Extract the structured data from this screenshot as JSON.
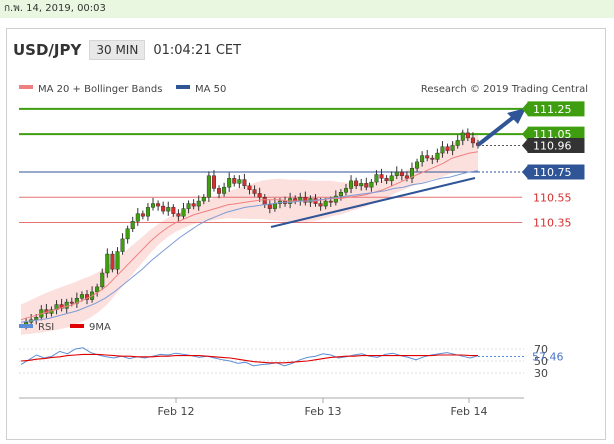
{
  "datetime": "ก.พ. 14, 2019, 00:03",
  "header": {
    "symbol": "USD/JPY",
    "timeframe": "30 MIN",
    "time": "01:04:21 CET"
  },
  "legend": {
    "ma20": "MA 20 + Bollinger Bands",
    "ma50": "MA 50",
    "credit": "Research © 2019 Trading Central"
  },
  "rsi_legend": {
    "rsi": "RSI",
    "ma9": "9MA"
  },
  "colors": {
    "green": "#3f9e0f",
    "blue": "#2f5597",
    "red": "#e57373",
    "dark": "#333333",
    "band": "#fbd6d3",
    "ma20": "#f08080",
    "ma50": "#7f9bd5"
  },
  "chart_data": {
    "type": "line",
    "instrument": "USD/JPY",
    "interval": "30 MIN",
    "x_labels": [
      "Feb 12",
      "Feb 13",
      "Feb 14"
    ],
    "levels": [
      {
        "value": 111.25,
        "label": "111.25",
        "color": "green"
      },
      {
        "value": 111.05,
        "label": "111.05",
        "color": "green"
      },
      {
        "value": 110.96,
        "label": "110.96",
        "color": "dark"
      },
      {
        "value": 110.75,
        "label": "110.75",
        "color": "blue"
      },
      {
        "value": 110.55,
        "label": "110.55",
        "color": "red"
      },
      {
        "value": 110.35,
        "label": "110.35",
        "color": "red"
      }
    ],
    "ylim": [
      109.45,
      111.4
    ],
    "closes": [
      109.54,
      109.56,
      109.58,
      109.6,
      109.66,
      109.63,
      109.66,
      109.7,
      109.67,
      109.72,
      109.71,
      109.75,
      109.78,
      109.74,
      109.8,
      109.84,
      109.95,
      110.1,
      109.98,
      110.12,
      110.22,
      110.3,
      110.36,
      110.42,
      110.4,
      110.47,
      110.5,
      110.48,
      110.44,
      110.47,
      110.42,
      110.4,
      110.46,
      110.5,
      110.48,
      110.52,
      110.55,
      110.72,
      110.62,
      110.58,
      110.63,
      110.7,
      110.66,
      110.69,
      110.64,
      110.61,
      110.58,
      110.55,
      110.49,
      110.46,
      110.5,
      110.52,
      110.5,
      110.54,
      110.52,
      110.55,
      110.51,
      110.54,
      110.5,
      110.48,
      110.52,
      110.51,
      110.56,
      110.59,
      110.62,
      110.68,
      110.64,
      110.66,
      110.63,
      110.67,
      110.73,
      110.7,
      110.68,
      110.72,
      110.75,
      110.72,
      110.7,
      110.78,
      110.83,
      110.88,
      110.86,
      110.85,
      110.9,
      110.95,
      110.92,
      110.96,
      111.0,
      111.06,
      111.02,
      110.98,
      110.96
    ],
    "ma20": [
      109.58,
      109.6,
      109.62,
      109.64,
      109.66,
      109.68,
      109.7,
      109.73,
      109.76,
      109.8,
      109.85,
      109.92,
      109.99,
      110.06,
      110.13,
      110.2,
      110.26,
      110.31,
      110.35,
      110.38,
      110.41,
      110.43,
      110.45,
      110.47,
      110.49,
      110.5,
      110.51,
      110.52,
      110.53,
      110.53,
      110.53,
      110.52,
      110.52,
      110.52,
      110.52,
      110.53,
      110.54,
      110.54,
      110.55,
      110.56,
      110.57,
      110.59,
      110.61,
      110.64,
      110.67,
      110.7,
      110.73,
      110.76,
      110.79,
      110.82,
      110.86,
      110.88,
      110.9,
      110.91
    ],
    "ma50": [
      109.56,
      109.57,
      109.58,
      109.59,
      109.61,
      109.63,
      109.65,
      109.68,
      109.71,
      109.75,
      109.8,
      109.86,
      109.92,
      109.98,
      110.05,
      110.11,
      110.17,
      110.23,
      110.28,
      110.33,
      110.37,
      110.4,
      110.43,
      110.45,
      110.47,
      110.48,
      110.49,
      110.5,
      110.51,
      110.51,
      110.52,
      110.52,
      110.53,
      110.54,
      110.55,
      110.56,
      110.57,
      110.58,
      110.59,
      110.6,
      110.62,
      110.63,
      110.65,
      110.66,
      110.68,
      110.7,
      110.71,
      110.73,
      110.75,
      110.76
    ],
    "rsi": {
      "levels": [
        "70",
        "50",
        "30"
      ],
      "current": 57.46,
      "current_label": "57.46",
      "values": [
        44,
        52,
        60,
        55,
        58,
        66,
        62,
        70,
        72,
        64,
        60,
        57,
        55,
        58,
        54,
        57,
        55,
        58,
        61,
        60,
        63,
        61,
        59,
        56,
        58,
        55,
        52,
        50,
        46,
        48,
        42,
        44,
        45,
        47,
        42,
        46,
        52,
        56,
        58,
        62,
        60,
        55,
        57,
        60,
        62,
        58,
        56,
        61,
        63,
        59,
        56,
        52,
        57,
        60,
        62,
        64,
        61,
        58,
        55,
        59
      ],
      "ma": [
        50,
        51,
        53,
        54,
        56,
        57,
        59,
        60,
        61,
        61,
        61,
        60,
        59,
        58,
        58,
        57,
        57,
        57,
        58,
        58,
        59,
        59,
        59,
        59,
        58,
        57,
        56,
        55,
        53,
        51,
        49,
        48,
        47,
        47,
        47,
        48,
        49,
        50,
        52,
        54,
        56,
        57,
        58,
        58,
        59,
        59,
        59,
        59,
        59,
        59,
        59,
        59,
        59,
        59,
        60,
        60,
        60,
        60,
        59,
        59
      ]
    }
  }
}
